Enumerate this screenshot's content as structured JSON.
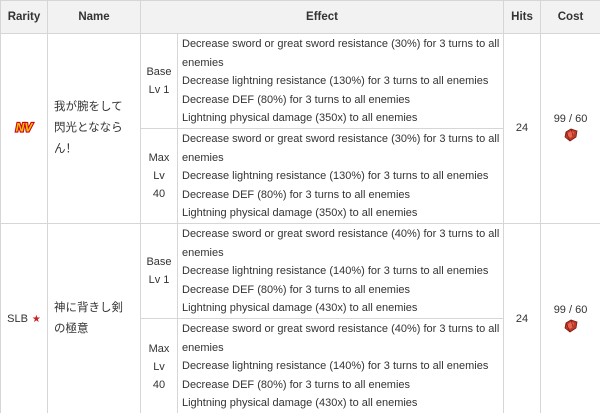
{
  "headers": {
    "rarity": "Rarity",
    "name": "Name",
    "effect": "Effect",
    "hits": "Hits",
    "cost": "Cost"
  },
  "rows": [
    {
      "rarity_label": "NV",
      "rarity_icon": "nv-badge-icon",
      "name": "我が腕をして閃光となならん！",
      "hits": "24",
      "cost": "99 / 60",
      "cost_icon": "crystal-gem-icon",
      "levels": [
        {
          "label_lines": [
            "Base",
            "Lv 1"
          ],
          "effects": [
            "Decrease sword or great sword resistance (30%) for 3 turns to all enemies",
            "Decrease lightning resistance (130%) for 3 turns to all enemies",
            "Decrease DEF (80%) for 3 turns to all enemies",
            "Lightning physical damage (350x) to all enemies"
          ]
        },
        {
          "label_lines": [
            "Max",
            "Lv",
            "40"
          ],
          "effects": [
            "Decrease sword or great sword resistance (30%) for 3 turns to all enemies",
            "Decrease lightning resistance (130%) for 3 turns to all enemies",
            "Decrease DEF (80%) for 3 turns to all enemies",
            "Lightning physical damage (350x) to all enemies"
          ]
        }
      ]
    },
    {
      "rarity_label": "SLB",
      "rarity_icon": "star-icon",
      "name": "神に背きし剣の極意",
      "hits": "24",
      "cost": "99 / 60",
      "cost_icon": "crystal-gem-icon",
      "levels": [
        {
          "label_lines": [
            "Base",
            "Lv 1"
          ],
          "effects": [
            "Decrease sword or great sword resistance (40%) for 3 turns to all enemies",
            "Decrease lightning resistance (140%) for 3 turns to all enemies",
            "Decrease DEF (80%) for 3 turns to all enemies",
            "Lightning physical damage (430x) to all enemies"
          ]
        },
        {
          "label_lines": [
            "Max",
            "Lv",
            "40"
          ],
          "effects": [
            "Decrease sword or great sword resistance (40%) for 3 turns to all enemies",
            "Decrease lightning resistance (140%) for 3 turns to all enemies",
            "Decrease DEF (80%) for 3 turns to all enemies",
            "Lightning physical damage (430x) to all enemies"
          ]
        }
      ]
    }
  ],
  "colors": {
    "header_bg": "#f2f2f2",
    "border": "#d6d6d6",
    "star": "#cc1f1f",
    "gem": "#c0392b",
    "nv_red": "#d0021b",
    "nv_yellow": "#f5c400"
  }
}
